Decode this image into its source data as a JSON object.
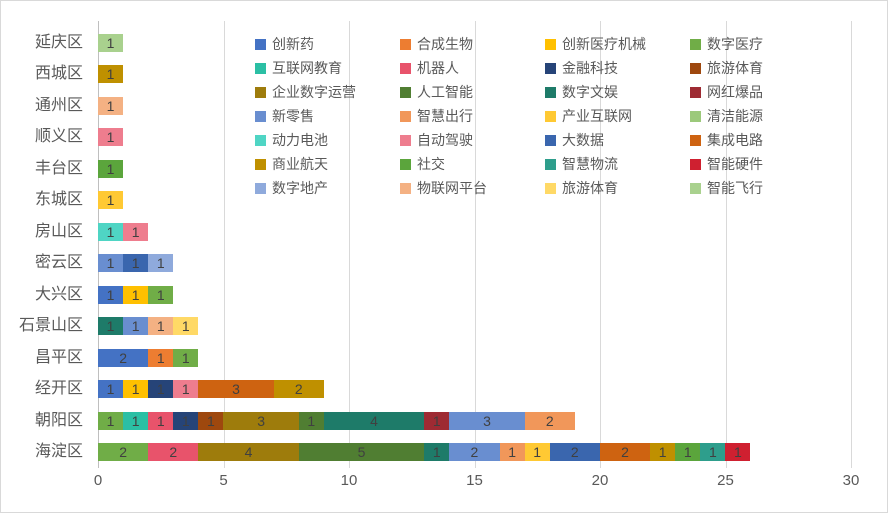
{
  "chart_data": {
    "type": "bar",
    "orientation": "horizontal",
    "stacked": true,
    "title": "",
    "xlabel": "",
    "ylabel": "",
    "axis": {
      "min": 0,
      "max": 30,
      "ticks": [
        0,
        5,
        10,
        15,
        20,
        25,
        30
      ],
      "grid": true
    },
    "legend_position": "top-right",
    "legend": [
      {
        "name": "创新药",
        "color": "#4472C4"
      },
      {
        "name": "合成生物",
        "color": "#ED7D31"
      },
      {
        "name": "创新医疗机械",
        "color": "#FFC000"
      },
      {
        "name": "数字医疗",
        "color": "#70AD47"
      },
      {
        "name": "互联网教育",
        "color": "#2BBFA4"
      },
      {
        "name": "机器人",
        "color": "#E8536B"
      },
      {
        "name": "金融科技",
        "color": "#264478"
      },
      {
        "name": "旅游体育",
        "color": "#9E480E"
      },
      {
        "name": "企业数字运营",
        "color": "#9E7C0C"
      },
      {
        "name": "人工智能",
        "color": "#507E32"
      },
      {
        "name": "数字文娱",
        "color": "#1E7B69"
      },
      {
        "name": "网红爆品",
        "color": "#9E2B33"
      },
      {
        "name": "新零售",
        "color": "#698ED0"
      },
      {
        "name": "智慧出行",
        "color": "#F1975A"
      },
      {
        "name": "产业互联网",
        "color": "#FFC933"
      },
      {
        "name": "清洁能源",
        "color": "#9CC97B"
      },
      {
        "name": "动力电池",
        "color": "#4FD5C4"
      },
      {
        "name": "自动驾驶",
        "color": "#EE7D8E"
      },
      {
        "name": "大数据",
        "color": "#3A66AE"
      },
      {
        "name": "集成电路",
        "color": "#CE6311"
      },
      {
        "name": "商业航天",
        "color": "#BF9000"
      },
      {
        "name": "社交",
        "color": "#5BA53C"
      },
      {
        "name": "智慧物流",
        "color": "#2E9E8C"
      },
      {
        "name": "智能硬件",
        "color": "#CF2030"
      },
      {
        "name": "数字地产",
        "color": "#8FAADC"
      },
      {
        "name": "物联网平台",
        "color": "#F4B183"
      },
      {
        "name": "旅游体育",
        "color": "#FFD966"
      },
      {
        "name": "智能飞行",
        "color": "#A9D18E"
      }
    ],
    "rows": [
      {
        "district": "延庆区",
        "segments": [
          {
            "category": "智能飞行",
            "ci": 27,
            "value": 1
          }
        ]
      },
      {
        "district": "西城区",
        "segments": [
          {
            "category": "商业航天",
            "ci": 20,
            "value": 1
          }
        ]
      },
      {
        "district": "通州区",
        "segments": [
          {
            "category": "物联网平台",
            "ci": 25,
            "value": 1
          }
        ]
      },
      {
        "district": "顺义区",
        "segments": [
          {
            "category": "自动驾驶",
            "ci": 17,
            "value": 1
          }
        ]
      },
      {
        "district": "丰台区",
        "segments": [
          {
            "category": "社交",
            "ci": 21,
            "value": 1
          }
        ]
      },
      {
        "district": "东城区",
        "segments": [
          {
            "category": "产业互联网",
            "ci": 14,
            "value": 1
          }
        ]
      },
      {
        "district": "房山区",
        "segments": [
          {
            "category": "动力电池",
            "ci": 16,
            "value": 1
          },
          {
            "category": "自动驾驶",
            "ci": 17,
            "value": 1
          }
        ]
      },
      {
        "district": "密云区",
        "segments": [
          {
            "category": "新零售",
            "ci": 12,
            "value": 1
          },
          {
            "category": "大数据",
            "ci": 18,
            "value": 1
          },
          {
            "category": "数字地产",
            "ci": 24,
            "value": 1
          }
        ]
      },
      {
        "district": "大兴区",
        "segments": [
          {
            "category": "创新药",
            "ci": 0,
            "value": 1
          },
          {
            "category": "创新医疗机械",
            "ci": 2,
            "value": 1
          },
          {
            "category": "数字医疗",
            "ci": 3,
            "value": 1
          }
        ]
      },
      {
        "district": "石景山区",
        "segments": [
          {
            "category": "数字文娱",
            "ci": 10,
            "value": 1
          },
          {
            "category": "新零售",
            "ci": 12,
            "value": 1
          },
          {
            "category": "物联网平台",
            "ci": 25,
            "value": 1
          },
          {
            "category": "旅游体育",
            "ci": 26,
            "value": 1
          }
        ]
      },
      {
        "district": "昌平区",
        "segments": [
          {
            "category": "创新药",
            "ci": 0,
            "value": 2
          },
          {
            "category": "合成生物",
            "ci": 1,
            "value": 1
          },
          {
            "category": "数字医疗",
            "ci": 3,
            "value": 1
          }
        ]
      },
      {
        "district": "经开区",
        "segments": [
          {
            "category": "创新药",
            "ci": 0,
            "value": 1
          },
          {
            "category": "创新医疗机械",
            "ci": 2,
            "value": 1
          },
          {
            "category": "金融科技",
            "ci": 6,
            "value": 1
          },
          {
            "category": "自动驾驶",
            "ci": 17,
            "value": 1
          },
          {
            "category": "集成电路",
            "ci": 19,
            "value": 3
          },
          {
            "category": "商业航天",
            "ci": 20,
            "value": 2
          }
        ]
      },
      {
        "district": "朝阳区",
        "segments": [
          {
            "category": "数字医疗",
            "ci": 3,
            "value": 1
          },
          {
            "category": "互联网教育",
            "ci": 4,
            "value": 1
          },
          {
            "category": "机器人",
            "ci": 5,
            "value": 1
          },
          {
            "category": "金融科技",
            "ci": 6,
            "value": 1
          },
          {
            "category": "旅游体育",
            "ci": 7,
            "value": 1
          },
          {
            "category": "企业数字运营",
            "ci": 8,
            "value": 3
          },
          {
            "category": "人工智能",
            "ci": 9,
            "value": 1
          },
          {
            "category": "数字文娱",
            "ci": 10,
            "value": 4
          },
          {
            "category": "网红爆品",
            "ci": 11,
            "value": 1
          },
          {
            "category": "新零售",
            "ci": 12,
            "value": 3
          },
          {
            "category": "智慧出行",
            "ci": 13,
            "value": 2
          }
        ]
      },
      {
        "district": "海淀区",
        "segments": [
          {
            "category": "数字医疗",
            "ci": 3,
            "value": 2
          },
          {
            "category": "机器人",
            "ci": 5,
            "value": 2
          },
          {
            "category": "企业数字运营",
            "ci": 8,
            "value": 4
          },
          {
            "category": "人工智能",
            "ci": 9,
            "value": 5
          },
          {
            "category": "数字文娱",
            "ci": 10,
            "value": 1
          },
          {
            "category": "新零售",
            "ci": 12,
            "value": 2
          },
          {
            "category": "智慧出行",
            "ci": 13,
            "value": 1
          },
          {
            "category": "产业互联网",
            "ci": 14,
            "value": 1
          },
          {
            "category": "大数据",
            "ci": 18,
            "value": 2
          },
          {
            "category": "集成电路",
            "ci": 19,
            "value": 2
          },
          {
            "category": "商业航天",
            "ci": 20,
            "value": 1
          },
          {
            "category": "社交",
            "ci": 21,
            "value": 1
          },
          {
            "category": "智慧物流",
            "ci": 22,
            "value": 1
          },
          {
            "category": "智能硬件",
            "ci": 23,
            "value": 1
          }
        ]
      }
    ]
  },
  "styles": {
    "background": "#FFFFFF",
    "frame_border": "#D9D9D9",
    "grid_color": "#D9D9D9",
    "axis_line_color": "#BFBFBF",
    "axis_text_color": "#595959",
    "data_label_color": "#404040"
  }
}
